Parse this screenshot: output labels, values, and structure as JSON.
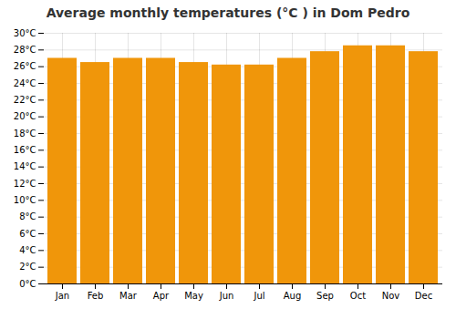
{
  "chart_data": {
    "type": "bar",
    "title": "Average monthly temperatures (°C ) in Dom Pedro",
    "categories": [
      "Jan",
      "Feb",
      "Mar",
      "Apr",
      "May",
      "Jun",
      "Jul",
      "Aug",
      "Sep",
      "Oct",
      "Nov",
      "Dec"
    ],
    "values": [
      27.0,
      26.5,
      27.0,
      27.0,
      26.5,
      26.2,
      26.2,
      27.0,
      27.8,
      28.5,
      28.5,
      27.8
    ],
    "color": "#F0960A",
    "ylim": [
      0,
      30
    ],
    "yticks": [
      {
        "value": 0,
        "label": "0°C"
      },
      {
        "value": 2,
        "label": "2°C"
      },
      {
        "value": 4,
        "label": "4°C"
      },
      {
        "value": 6,
        "label": "6°C"
      },
      {
        "value": 8,
        "label": "8°C"
      },
      {
        "value": 10,
        "label": "10°C"
      },
      {
        "value": 12,
        "label": "12°C"
      },
      {
        "value": 14,
        "label": "14°C"
      },
      {
        "value": 16,
        "label": "16°C"
      },
      {
        "value": 18,
        "label": "18°C"
      },
      {
        "value": 20,
        "label": "20°C"
      },
      {
        "value": 22,
        "label": "22°C"
      },
      {
        "value": 24,
        "label": "24°C"
      },
      {
        "value": 26,
        "label": "26°C"
      },
      {
        "value": 28,
        "label": "28°C"
      },
      {
        "value": 30,
        "label": "30°C"
      }
    ],
    "grid": true
  }
}
